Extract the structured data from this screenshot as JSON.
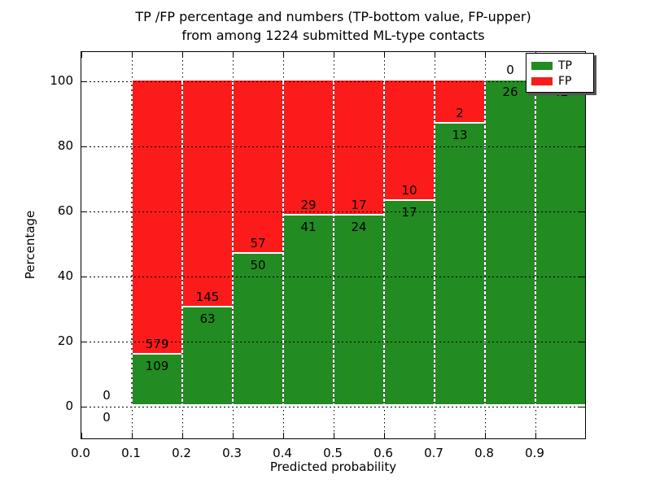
{
  "title": {
    "line1": "TP /FP percentage and numbers (TP-bottom value, FP-upper)",
    "line2": "from among 1224 submitted ML-type contacts"
  },
  "y_axis": {
    "label": "Percentage",
    "ticks": [
      0,
      20,
      40,
      60,
      80,
      100
    ]
  },
  "x_axis": {
    "label": "Predicted probability",
    "ticks": [
      "0.0",
      "0.1",
      "0.2",
      "0.3",
      "0.4",
      "0.5",
      "0.6",
      "0.7",
      "0.8",
      "0.9"
    ]
  },
  "legend": {
    "items": [
      {
        "label": "TP",
        "color": "#228b22"
      },
      {
        "label": "FP",
        "color": "#fb1b1b"
      }
    ]
  },
  "colors": {
    "tp": "#228b22",
    "fp": "#fb1b1b",
    "frame": "#000000",
    "background": "#ffffff"
  },
  "chart_data": {
    "type": "bar",
    "stacked": true,
    "normalization": "percent of bin total",
    "title": "TP /FP percentage and numbers (TP-bottom value, FP-upper) from among 1224 submitted ML-type contacts",
    "xlabel": "Predicted probability",
    "ylabel": "Percentage",
    "xlim": [
      0.0,
      1.0
    ],
    "ylim": [
      -10,
      110
    ],
    "grid": "dotted, drawn above bars",
    "legend_position": "upper right",
    "total_contacts": 1224,
    "bin_width": 0.1,
    "series": [
      {
        "name": "TP",
        "color": "#228b22",
        "position": "bottom"
      },
      {
        "name": "FP",
        "color": "#fb1b1b",
        "position": "top"
      }
    ],
    "bins": [
      {
        "x0": 0.0,
        "x1": 0.1,
        "tp": 0,
        "fp": 0,
        "tp_pct": 0.0,
        "fp_pct": 0.0
      },
      {
        "x0": 0.1,
        "x1": 0.2,
        "tp": 109,
        "fp": 579,
        "tp_pct": 15.84,
        "fp_pct": 84.16
      },
      {
        "x0": 0.2,
        "x1": 0.3,
        "tp": 63,
        "fp": 145,
        "tp_pct": 30.29,
        "fp_pct": 69.71
      },
      {
        "x0": 0.3,
        "x1": 0.4,
        "tp": 50,
        "fp": 57,
        "tp_pct": 46.73,
        "fp_pct": 53.27
      },
      {
        "x0": 0.4,
        "x1": 0.5,
        "tp": 41,
        "fp": 29,
        "tp_pct": 58.57,
        "fp_pct": 41.43
      },
      {
        "x0": 0.5,
        "x1": 0.6,
        "tp": 24,
        "fp": 17,
        "tp_pct": 58.54,
        "fp_pct": 41.46
      },
      {
        "x0": 0.6,
        "x1": 0.7,
        "tp": 17,
        "fp": 10,
        "tp_pct": 62.96,
        "fp_pct": 37.04
      },
      {
        "x0": 0.7,
        "x1": 0.8,
        "tp": 13,
        "fp": 2,
        "tp_pct": 86.67,
        "fp_pct": 13.33
      },
      {
        "x0": 0.8,
        "x1": 0.9,
        "tp": 26,
        "fp": 0,
        "tp_pct": 100.0,
        "fp_pct": 0.0
      },
      {
        "x0": 0.9,
        "x1": 1.0,
        "tp": 42,
        "fp": 0,
        "tp_pct": 100.0,
        "fp_pct": 0.0
      }
    ]
  }
}
